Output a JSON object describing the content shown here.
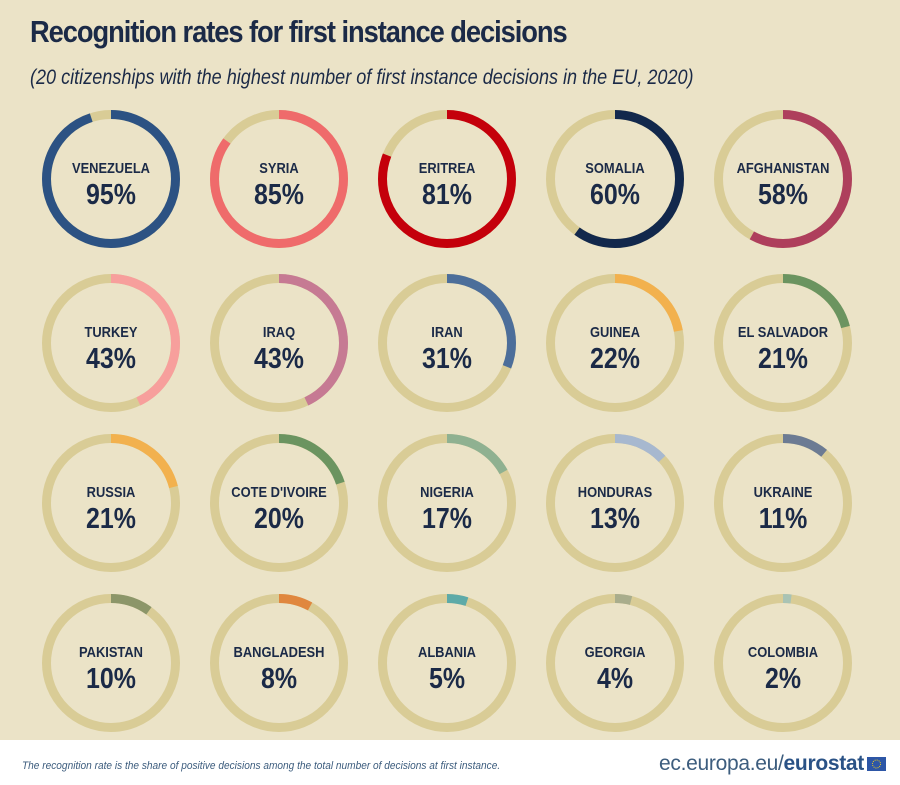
{
  "header": {
    "title": "Recognition rates for first instance decisions",
    "subtitle": "(20 citizenships with the highest number of first instance decisions in the EU, 2020)"
  },
  "footer": {
    "note": "The recognition rate is the share of positive decisions among the total number of decisions at first instance.",
    "source_prefix": "ec.europa.eu/",
    "source_brand": "eurostat",
    "logo_icon": "eu-flag-icon"
  },
  "colors": {
    "background": "#ebe3c7",
    "track": "#d9cc96",
    "text": "#1b2a47"
  },
  "chart_data": {
    "type": "donut-grid",
    "title": "Recognition rates for first instance decisions",
    "subtitle": "(20 citizenships with the highest number of first instance decisions in the EU, 2020)",
    "unit": "%",
    "categories": [
      "VENEZUELA",
      "SYRIA",
      "ERITREA",
      "SOMALIA",
      "AFGHANISTAN",
      "TURKEY",
      "IRAQ",
      "IRAN",
      "GUINEA",
      "EL SALVADOR",
      "RUSSIA",
      "COTE D'IVOIRE",
      "NIGERIA",
      "HONDURAS",
      "UKRAINE",
      "PAKISTAN",
      "BANGLADESH",
      "ALBANIA",
      "GEORGIA",
      "COLOMBIA"
    ],
    "values": [
      95,
      85,
      81,
      60,
      58,
      43,
      43,
      31,
      22,
      21,
      21,
      20,
      17,
      13,
      11,
      10,
      8,
      5,
      4,
      2
    ],
    "labels": [
      "95%",
      "85%",
      "81%",
      "60%",
      "58%",
      "43%",
      "43%",
      "31%",
      "22%",
      "21%",
      "21%",
      "20%",
      "17%",
      "13%",
      "11%",
      "10%",
      "8%",
      "5%",
      "4%",
      "2%"
    ],
    "series_colors": [
      "#2c5283",
      "#ef6b6b",
      "#c4000b",
      "#12284c",
      "#ae3f5c",
      "#f79f9c",
      "#c67a93",
      "#4c6e9a",
      "#f2b14e",
      "#6b9460",
      "#f2b14e",
      "#6b9460",
      "#8fb191",
      "#a7b8cf",
      "#6c7b93",
      "#8c9669",
      "#e0873e",
      "#5daaa8",
      "#a9ad8c",
      "#a9c3b4"
    ],
    "max": 100,
    "grid": false,
    "legend": "none"
  }
}
